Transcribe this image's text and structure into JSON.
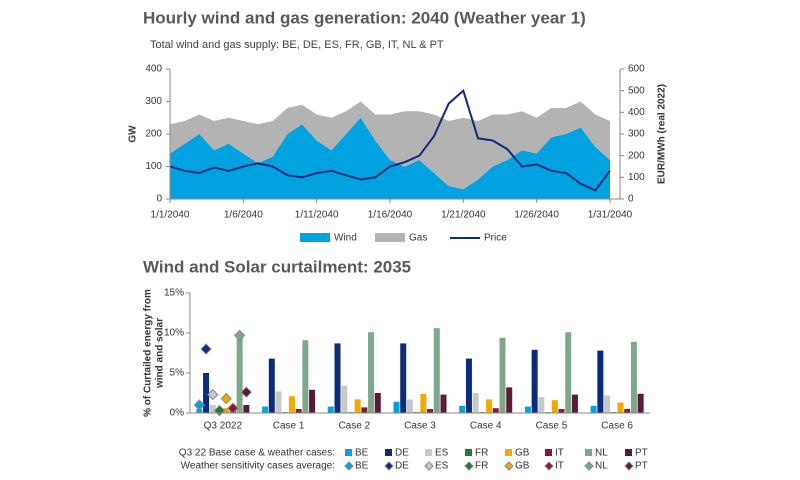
{
  "chart_data": [
    {
      "type": "stacked-area-line",
      "title": "Hourly wind and gas generation: 2040 (Weather year 1)",
      "subtitle": "Total wind and gas supply: BE, DE, ES, FR, GB, IT, NL & PT",
      "ylabel": "GW",
      "y2label": "EUR/MWh (real 2022)",
      "x": [
        "1/1/2040",
        "1/2/2040",
        "1/3/2040",
        "1/4/2040",
        "1/5/2040",
        "1/6/2040",
        "1/7/2040",
        "1/8/2040",
        "1/9/2040",
        "1/10/2040",
        "1/11/2040",
        "1/12/2040",
        "1/13/2040",
        "1/14/2040",
        "1/15/2040",
        "1/16/2040",
        "1/17/2040",
        "1/18/2040",
        "1/19/2040",
        "1/20/2040",
        "1/21/2040",
        "1/22/2040",
        "1/23/2040",
        "1/24/2040",
        "1/25/2040",
        "1/26/2040",
        "1/27/2040",
        "1/28/2040",
        "1/29/2040",
        "1/30/2040",
        "1/31/2040"
      ],
      "xticks": [
        "1/1/2040",
        "1/6/2040",
        "1/11/2040",
        "1/16/2040",
        "1/21/2040",
        "1/26/2040",
        "1/31/2040"
      ],
      "ylim": [
        0,
        400
      ],
      "yticks": [
        0,
        100,
        200,
        300,
        400
      ],
      "y2lim": [
        0,
        600
      ],
      "y2ticks": [
        0,
        100,
        200,
        300,
        400,
        500,
        600
      ],
      "grid": false,
      "series": [
        {
          "name": "Wind",
          "color": "#00a3e0",
          "style": "area",
          "values": [
            140,
            170,
            200,
            150,
            170,
            140,
            110,
            130,
            200,
            230,
            180,
            150,
            200,
            250,
            180,
            120,
            100,
            120,
            80,
            40,
            30,
            60,
            100,
            120,
            150,
            140,
            190,
            200,
            220,
            160,
            120
          ]
        },
        {
          "name": "Gas",
          "color": "#b3b3b3",
          "style": "area",
          "values": [
            90,
            70,
            60,
            90,
            80,
            100,
            120,
            110,
            80,
            60,
            80,
            100,
            70,
            50,
            80,
            140,
            170,
            150,
            180,
            200,
            220,
            180,
            160,
            140,
            120,
            110,
            90,
            80,
            80,
            100,
            120
          ]
        },
        {
          "name": "Price",
          "color": "#0a2c7a",
          "style": "line",
          "axis": "y2",
          "values": [
            150,
            130,
            120,
            145,
            130,
            150,
            165,
            150,
            110,
            100,
            120,
            130,
            110,
            90,
            100,
            150,
            170,
            200,
            290,
            440,
            500,
            280,
            270,
            230,
            150,
            160,
            130,
            120,
            70,
            40,
            130
          ]
        }
      ]
    },
    {
      "type": "grouped-bar",
      "title": "Wind and Solar curtailment: 2035",
      "ylabel": [
        "% of Curtailed energy from",
        "wind and solar"
      ],
      "categories": [
        "Q3 2022",
        "Case 1",
        "Case 2",
        "Case 3",
        "Case 4",
        "Case 5",
        "Case 6"
      ],
      "ylim": [
        0,
        15
      ],
      "yticks": [
        {
          "value": 0,
          "label": "0%"
        },
        {
          "value": 5,
          "label": "5%"
        },
        {
          "value": 10,
          "label": "10%"
        },
        {
          "value": 15,
          "label": "15%"
        }
      ],
      "grid": false,
      "legend_titles": [
        "Q3 22 Base case & weather cases:",
        "Weather sensitivity cases average:"
      ],
      "series": [
        {
          "name": "BE",
          "color": "#00a3e0",
          "values": [
            0.5,
            0.8,
            0.8,
            1.4,
            0.9,
            0.8,
            0.9
          ]
        },
        {
          "name": "DE",
          "color": "#0a2c7a",
          "values": [
            5.0,
            6.8,
            8.7,
            8.7,
            6.8,
            7.9,
            7.8
          ]
        },
        {
          "name": "ES",
          "color": "#c8c8c8",
          "values": [
            1.0,
            2.7,
            3.4,
            1.7,
            2.5,
            2.0,
            2.2
          ]
        },
        {
          "name": "FR",
          "color": "#1e7b3a",
          "values": [
            0.1,
            0.1,
            0.1,
            0.1,
            0.1,
            0.1,
            0.1
          ]
        },
        {
          "name": "GB",
          "color": "#f2a900",
          "values": [
            0.6,
            2.1,
            1.7,
            2.4,
            1.7,
            1.6,
            1.3
          ]
        },
        {
          "name": "IT",
          "color": "#8b1a2b",
          "values": [
            0.3,
            0.5,
            0.7,
            0.5,
            0.6,
            0.5,
            0.5
          ]
        },
        {
          "name": "NL",
          "color": "#7fa88a",
          "values": [
            9.7,
            9.1,
            10.1,
            10.6,
            9.4,
            10.1,
            8.9
          ]
        },
        {
          "name": "PT",
          "color": "#5c1a3a",
          "values": [
            1.0,
            2.9,
            2.5,
            2.3,
            3.2,
            2.3,
            2.4
          ]
        }
      ],
      "marker_series": [
        {
          "name": "BE",
          "color": "#00a3e0",
          "values": [
            1.0,
            null,
            null,
            null,
            null,
            null,
            null
          ]
        },
        {
          "name": "DE",
          "color": "#0a2c7a",
          "values": [
            8.0,
            null,
            null,
            null,
            null,
            null,
            null
          ]
        },
        {
          "name": "ES",
          "color": "#c8c8c8",
          "values": [
            2.3,
            null,
            null,
            null,
            null,
            null,
            null
          ]
        },
        {
          "name": "FR",
          "color": "#1e7b3a",
          "values": [
            0.3,
            null,
            null,
            null,
            null,
            null,
            null
          ]
        },
        {
          "name": "GB",
          "color": "#f2a900",
          "values": [
            1.8,
            null,
            null,
            null,
            null,
            null,
            null
          ]
        },
        {
          "name": "IT",
          "color": "#8b1a2b",
          "values": [
            0.6,
            null,
            null,
            null,
            null,
            null,
            null
          ]
        },
        {
          "name": "NL",
          "color": "#7fa88a",
          "values": [
            9.7,
            null,
            null,
            null,
            null,
            null,
            null
          ]
        },
        {
          "name": "PT",
          "color": "#5c1a3a",
          "values": [
            2.6,
            null,
            null,
            null,
            null,
            null,
            null
          ]
        }
      ]
    }
  ]
}
